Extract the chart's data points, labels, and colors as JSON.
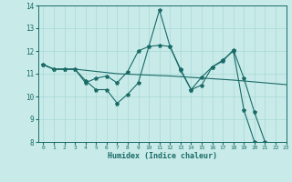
{
  "xlabel": "Humidex (Indice chaleur)",
  "bg_color": "#c8ebe9",
  "grid_color": "#a8d8d5",
  "line_color": "#1a6b68",
  "xlim": [
    -0.5,
    23
  ],
  "ylim": [
    8,
    14
  ],
  "yticks": [
    8,
    9,
    10,
    11,
    12,
    13,
    14
  ],
  "xticks": [
    0,
    1,
    2,
    3,
    4,
    5,
    6,
    7,
    8,
    9,
    10,
    11,
    12,
    13,
    14,
    15,
    16,
    17,
    18,
    19,
    20,
    21,
    22,
    23
  ],
  "line_zigzag_x": [
    0,
    1,
    2,
    3,
    4,
    5,
    6,
    7,
    8,
    9,
    10,
    11,
    12,
    13,
    14,
    15,
    16,
    17,
    18,
    19,
    20,
    21,
    22,
    23
  ],
  "line_zigzag_y": [
    11.4,
    11.2,
    11.2,
    11.2,
    10.7,
    10.3,
    10.3,
    9.7,
    10.1,
    10.6,
    12.2,
    13.8,
    12.2,
    11.2,
    10.3,
    10.5,
    11.3,
    11.6,
    12.0,
    9.4,
    8.0,
    7.8,
    7.7,
    7.65
  ],
  "line_smooth_x": [
    0,
    1,
    2,
    3,
    4,
    5,
    6,
    7,
    8,
    9,
    10,
    11,
    12,
    13,
    14,
    15,
    16,
    17,
    18,
    19,
    20,
    21,
    22,
    23
  ],
  "line_smooth_y": [
    11.4,
    11.2,
    11.2,
    11.2,
    11.15,
    11.1,
    11.05,
    11.0,
    10.98,
    10.96,
    10.94,
    10.92,
    10.9,
    10.87,
    10.84,
    10.81,
    10.78,
    10.75,
    10.72,
    10.68,
    10.64,
    10.6,
    10.56,
    10.52
  ],
  "line_upper_x": [
    0,
    1,
    2,
    3,
    4,
    5,
    6,
    7,
    8,
    9,
    10,
    11,
    12,
    13,
    14,
    15,
    16,
    17,
    18,
    19,
    20,
    21,
    22,
    23
  ],
  "line_upper_y": [
    11.4,
    11.2,
    11.2,
    11.2,
    10.6,
    10.8,
    10.9,
    10.6,
    11.1,
    12.0,
    12.2,
    12.25,
    12.2,
    11.15,
    10.3,
    10.85,
    11.3,
    11.55,
    12.05,
    10.8,
    9.3,
    8.0,
    7.8,
    7.65
  ]
}
